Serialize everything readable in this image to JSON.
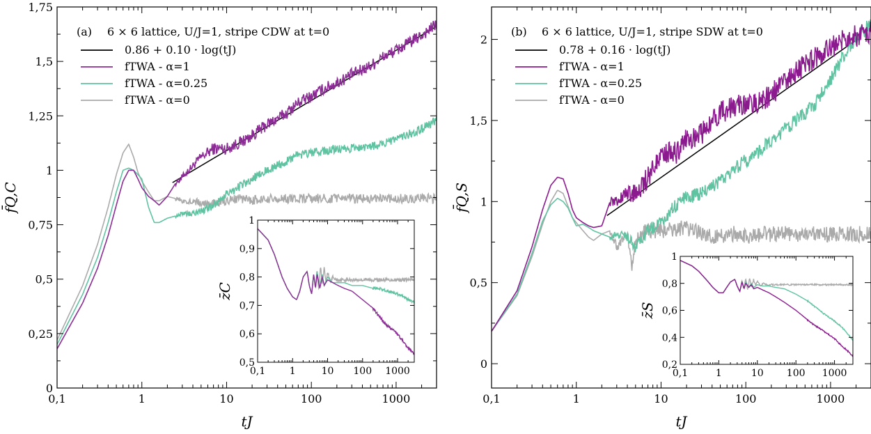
{
  "chart_data": [
    {
      "type": "line",
      "panel": "(a)",
      "title": "6 × 6 lattice, U/J=1, stripe CDW at t=0",
      "xlabel": "tJ",
      "ylabel": "f̄Q,C",
      "xscale": "log",
      "xlim": [
        0.1,
        3000
      ],
      "ylim": [
        0,
        1.75
      ],
      "xticks": [
        0.1,
        1,
        10,
        100,
        1000
      ],
      "xtick_labels": [
        "0,1",
        "1",
        "10",
        "100",
        "1000"
      ],
      "yticks": [
        0,
        0.25,
        0.5,
        0.75,
        1,
        1.25,
        1.5,
        1.75
      ],
      "ytick_labels": [
        "0",
        "0,25",
        "0,5",
        "0,75",
        "1",
        "1,25",
        "1,5",
        "1,75"
      ],
      "legend_position": "top-left",
      "fit": {
        "name": "0.86 + 0.10 · log(tJ)",
        "a": 0.86,
        "b": 0.1,
        "x": [
          2.3,
          3000
        ],
        "color": "#000000"
      },
      "series": [
        {
          "name": "fTWA - α=1",
          "color": "#8B2C95",
          "noise": 0.028,
          "x": [
            0.1,
            0.2,
            0.3,
            0.4,
            0.5,
            0.6,
            0.7,
            0.8,
            0.9,
            1.0,
            1.2,
            1.4,
            1.6,
            2,
            2.5,
            3,
            4,
            5,
            7,
            10,
            15,
            20,
            30,
            50,
            70,
            100,
            150,
            200,
            300,
            500,
            700,
            1000,
            1500,
            2000,
            3000
          ],
          "y": [
            0.18,
            0.39,
            0.55,
            0.7,
            0.84,
            0.95,
            1.0,
            1.0,
            0.96,
            0.92,
            0.88,
            0.86,
            0.84,
            0.88,
            0.94,
            0.97,
            1.02,
            1.06,
            1.1,
            1.1,
            1.13,
            1.16,
            1.21,
            1.26,
            1.31,
            1.34,
            1.38,
            1.4,
            1.44,
            1.48,
            1.52,
            1.55,
            1.59,
            1.62,
            1.67
          ]
        },
        {
          "name": "fTWA - α=0.25",
          "color": "#5FC3A2",
          "noise": 0.02,
          "x": [
            0.1,
            0.2,
            0.3,
            0.4,
            0.5,
            0.6,
            0.7,
            0.8,
            0.9,
            1.0,
            1.2,
            1.4,
            1.6,
            2,
            2.5,
            3,
            4,
            5,
            7,
            10,
            15,
            20,
            30,
            50,
            70,
            100,
            150,
            200,
            300,
            500,
            700,
            1000,
            1500,
            2000,
            3000
          ],
          "y": [
            0.2,
            0.43,
            0.6,
            0.76,
            0.9,
            1.0,
            1.01,
            1.0,
            0.98,
            0.96,
            0.83,
            0.76,
            0.76,
            0.78,
            0.79,
            0.8,
            0.8,
            0.81,
            0.84,
            0.89,
            0.93,
            0.96,
            1.0,
            1.04,
            1.07,
            1.08,
            1.09,
            1.1,
            1.1,
            1.11,
            1.12,
            1.14,
            1.17,
            1.19,
            1.23
          ]
        },
        {
          "name": "fTWA - α=0",
          "color": "#AAAAAA",
          "noise": 0.022,
          "x": [
            0.1,
            0.2,
            0.3,
            0.4,
            0.5,
            0.6,
            0.7,
            0.8,
            0.9,
            1.0,
            1.2,
            1.4,
            1.6,
            2,
            2.5,
            3,
            4,
            5,
            7,
            10,
            15,
            20,
            30,
            50,
            70,
            100,
            200,
            500,
            1000,
            3000
          ],
          "y": [
            0.22,
            0.47,
            0.66,
            0.83,
            0.98,
            1.08,
            1.12,
            1.06,
            0.99,
            0.95,
            0.9,
            0.86,
            0.86,
            0.88,
            0.87,
            0.86,
            0.86,
            0.85,
            0.85,
            0.86,
            0.87,
            0.86,
            0.87,
            0.87,
            0.87,
            0.87,
            0.87,
            0.87,
            0.87,
            0.87
          ]
        }
      ],
      "inset": {
        "ylabel": "z̄C",
        "xlim": [
          0.1,
          3000
        ],
        "ylim": [
          0.5,
          1
        ],
        "xticks": [
          0.1,
          1,
          10,
          100,
          1000
        ],
        "xtick_labels": [
          "0,1",
          "1",
          "10",
          "100",
          "1000"
        ],
        "yticks": [
          0.5,
          0.6,
          0.7,
          0.8,
          0.9,
          1
        ],
        "ytick_labels": [
          "0,5",
          "0,6",
          "0,7",
          "0,8",
          "0,9",
          "1"
        ],
        "series": [
          {
            "name": "fTWA - α=0",
            "color": "#AAAAAA",
            "noise": 0.0,
            "x": [
              0.1,
              0.2,
              0.3,
              0.5,
              0.7,
              1.0,
              1.3,
              1.6,
              2,
              2.6,
              3,
              3.5,
              4,
              4.5,
              5,
              5.6,
              6.3,
              7,
              8,
              9,
              10,
              12,
              14,
              17,
              20,
              30,
              50,
              100,
              300,
              1000,
              3000
            ],
            "y": [
              0.97,
              0.93,
              0.88,
              0.8,
              0.76,
              0.73,
              0.72,
              0.75,
              0.8,
              0.82,
              0.77,
              0.74,
              0.81,
              0.76,
              0.83,
              0.75,
              0.84,
              0.77,
              0.83,
              0.78,
              0.82,
              0.78,
              0.8,
              0.79,
              0.79,
              0.79,
              0.79,
              0.79,
              0.79,
              0.79,
              0.79
            ]
          },
          {
            "name": "fTWA - α=0.25",
            "color": "#5FC3A2",
            "noise": 0.0,
            "x": [
              0.1,
              0.2,
              0.3,
              0.5,
              0.7,
              1.0,
              1.3,
              1.6,
              2,
              2.6,
              3,
              3.5,
              4,
              4.5,
              5,
              6,
              7,
              8,
              10,
              14,
              20,
              30,
              50,
              100,
              200,
              300,
              500,
              1000,
              1500,
              2000,
              3000
            ],
            "y": [
              0.97,
              0.93,
              0.88,
              0.8,
              0.76,
              0.73,
              0.72,
              0.75,
              0.8,
              0.82,
              0.77,
              0.74,
              0.81,
              0.76,
              0.82,
              0.76,
              0.81,
              0.77,
              0.8,
              0.78,
              0.78,
              0.78,
              0.77,
              0.77,
              0.76,
              0.76,
              0.75,
              0.74,
              0.73,
              0.72,
              0.71
            ]
          },
          {
            "name": "fTWA - α=1",
            "color": "#8B2C95",
            "noise": 0.0,
            "x": [
              0.1,
              0.2,
              0.3,
              0.5,
              0.7,
              1.0,
              1.3,
              1.6,
              2,
              2.6,
              3,
              3.5,
              4,
              4.5,
              5,
              6,
              7,
              8,
              10,
              14,
              20,
              30,
              50,
              100,
              200,
              300,
              500,
              1000,
              1500,
              2000,
              3000
            ],
            "y": [
              0.97,
              0.93,
              0.88,
              0.8,
              0.76,
              0.73,
              0.72,
              0.75,
              0.8,
              0.82,
              0.77,
              0.74,
              0.81,
              0.76,
              0.81,
              0.76,
              0.8,
              0.77,
              0.79,
              0.78,
              0.77,
              0.76,
              0.75,
              0.72,
              0.69,
              0.66,
              0.63,
              0.6,
              0.57,
              0.55,
              0.53
            ]
          }
        ]
      }
    },
    {
      "type": "line",
      "panel": "(b)",
      "title": "6 × 6 lattice, U/J=1, stripe SDW at t=0",
      "xlabel": "tJ",
      "ylabel": "f̄Q,S",
      "xscale": "log",
      "xlim": [
        0.1,
        3000
      ],
      "ylim": [
        -0.15,
        2.2
      ],
      "xticks": [
        0.1,
        1,
        10,
        100,
        1000
      ],
      "xtick_labels": [
        "0,1",
        "1",
        "10",
        "100",
        "1000"
      ],
      "yticks": [
        0,
        0.5,
        1,
        1.5,
        2
      ],
      "ytick_labels": [
        "0",
        "0,5",
        "1",
        "1,5",
        "2"
      ],
      "legend_position": "top-left",
      "fit": {
        "name": "0.78 + 0.16 · log(tJ)",
        "a": 0.78,
        "b": 0.16,
        "x": [
          2.3,
          2000
        ],
        "color": "#000000"
      },
      "series": [
        {
          "name": "fTWA - α=1",
          "color": "#8B1A8E",
          "noise": 0.07,
          "x": [
            0.1,
            0.2,
            0.3,
            0.4,
            0.5,
            0.6,
            0.7,
            0.8,
            0.9,
            1.0,
            1.2,
            1.4,
            1.6,
            2,
            2.5,
            3,
            4,
            5,
            7,
            10,
            15,
            20,
            30,
            50,
            70,
            100,
            150,
            200,
            300,
            500,
            700,
            1000,
            1500,
            2000,
            3000
          ],
          "y": [
            0.2,
            0.45,
            0.72,
            0.95,
            1.1,
            1.15,
            1.14,
            1.05,
            0.95,
            0.9,
            0.87,
            0.85,
            0.84,
            0.85,
            1.0,
            1.0,
            1.05,
            1.05,
            1.15,
            1.3,
            1.3,
            1.38,
            1.42,
            1.55,
            1.58,
            1.6,
            1.62,
            1.66,
            1.75,
            1.84,
            1.9,
            1.95,
            2.0,
            2.02,
            2.05
          ]
        },
        {
          "name": "fTWA - α=0.25",
          "color": "#5FC3A2",
          "noise": 0.045,
          "x": [
            0.1,
            0.2,
            0.3,
            0.4,
            0.5,
            0.6,
            0.7,
            0.8,
            0.9,
            1.0,
            1.2,
            1.4,
            1.6,
            2,
            2.5,
            3,
            4,
            5,
            7,
            10,
            15,
            20,
            30,
            50,
            70,
            100,
            150,
            200,
            300,
            500,
            700,
            1000,
            1500,
            2000,
            3000
          ],
          "y": [
            0.2,
            0.43,
            0.68,
            0.88,
            0.98,
            1.02,
            1.0,
            0.96,
            0.9,
            0.85,
            0.86,
            0.84,
            0.82,
            0.8,
            0.78,
            0.8,
            0.78,
            0.72,
            0.82,
            0.88,
            0.98,
            1.03,
            1.05,
            1.12,
            1.2,
            1.25,
            1.32,
            1.37,
            1.45,
            1.55,
            1.62,
            1.75,
            1.92,
            2.0,
            2.1
          ]
        },
        {
          "name": "fTWA - α=0",
          "color": "#AAAAAA",
          "noise": 0.05,
          "x": [
            0.1,
            0.2,
            0.3,
            0.4,
            0.5,
            0.6,
            0.7,
            0.8,
            0.9,
            1.0,
            1.2,
            1.4,
            1.6,
            2,
            2.5,
            3,
            4,
            4.5,
            5,
            6,
            7,
            10,
            15,
            20,
            30,
            50,
            70,
            100,
            200,
            500,
            1000,
            3000
          ],
          "y": [
            0.2,
            0.42,
            0.66,
            0.86,
            1.0,
            1.07,
            1.05,
            0.97,
            0.9,
            0.87,
            0.82,
            0.78,
            0.76,
            0.8,
            0.82,
            0.72,
            0.8,
            0.6,
            0.75,
            0.8,
            0.82,
            0.82,
            0.83,
            0.84,
            0.8,
            0.78,
            0.8,
            0.79,
            0.8,
            0.8,
            0.8,
            0.8
          ]
        }
      ],
      "inset": {
        "ylabel": "z̄S",
        "xlim": [
          0.1,
          3000
        ],
        "ylim": [
          0.2,
          1
        ],
        "xticks": [
          0.1,
          1,
          10,
          100,
          1000
        ],
        "xtick_labels": [
          "0,1",
          "1",
          "10",
          "100",
          "1000"
        ],
        "yticks": [
          0.2,
          0.4,
          0.6,
          0.8,
          1
        ],
        "ytick_labels": [
          "0,2",
          "0,4",
          "0,6",
          "0,8",
          "1"
        ],
        "series": [
          {
            "name": "fTWA - α=0",
            "color": "#AAAAAA",
            "noise": 0.0,
            "x": [
              0.1,
              0.2,
              0.3,
              0.5,
              0.7,
              1.0,
              1.3,
              1.6,
              2,
              2.6,
              3,
              3.5,
              4,
              4.5,
              5,
              5.6,
              6.3,
              7,
              8,
              9,
              10,
              12,
              14,
              17,
              20,
              30,
              50,
              100,
              300,
              1000,
              3000
            ],
            "y": [
              0.97,
              0.93,
              0.89,
              0.82,
              0.77,
              0.73,
              0.73,
              0.77,
              0.81,
              0.83,
              0.78,
              0.74,
              0.82,
              0.76,
              0.84,
              0.75,
              0.84,
              0.77,
              0.83,
              0.78,
              0.82,
              0.78,
              0.8,
              0.79,
              0.79,
              0.79,
              0.79,
              0.79,
              0.79,
              0.79,
              0.79
            ]
          },
          {
            "name": "fTWA - α=0.25",
            "color": "#5FC3A2",
            "noise": 0.0,
            "x": [
              0.1,
              0.2,
              0.3,
              0.5,
              0.7,
              1.0,
              1.3,
              1.6,
              2,
              2.6,
              3,
              3.5,
              4,
              4.5,
              5,
              6,
              7,
              8,
              10,
              14,
              20,
              30,
              50,
              100,
              200,
              300,
              500,
              1000,
              1500,
              2000,
              3000
            ],
            "y": [
              0.97,
              0.93,
              0.89,
              0.82,
              0.77,
              0.73,
              0.73,
              0.77,
              0.81,
              0.83,
              0.78,
              0.74,
              0.81,
              0.76,
              0.81,
              0.77,
              0.8,
              0.77,
              0.79,
              0.78,
              0.78,
              0.77,
              0.76,
              0.72,
              0.67,
              0.63,
              0.58,
              0.52,
              0.48,
              0.44,
              0.38
            ]
          },
          {
            "name": "fTWA - α=1",
            "color": "#8B1A8E",
            "noise": 0.0,
            "x": [
              0.1,
              0.2,
              0.3,
              0.5,
              0.7,
              1.0,
              1.3,
              1.6,
              2,
              2.6,
              3,
              3.5,
              4,
              4.5,
              5,
              6,
              7,
              8,
              10,
              14,
              20,
              30,
              50,
              100,
              200,
              300,
              500,
              1000,
              1500,
              2000,
              3000
            ],
            "y": [
              0.97,
              0.93,
              0.89,
              0.82,
              0.77,
              0.73,
              0.73,
              0.77,
              0.81,
              0.83,
              0.78,
              0.74,
              0.81,
              0.76,
              0.8,
              0.77,
              0.79,
              0.76,
              0.77,
              0.75,
              0.73,
              0.7,
              0.66,
              0.6,
              0.53,
              0.49,
              0.45,
              0.39,
              0.34,
              0.31,
              0.26
            ]
          }
        ]
      }
    }
  ]
}
